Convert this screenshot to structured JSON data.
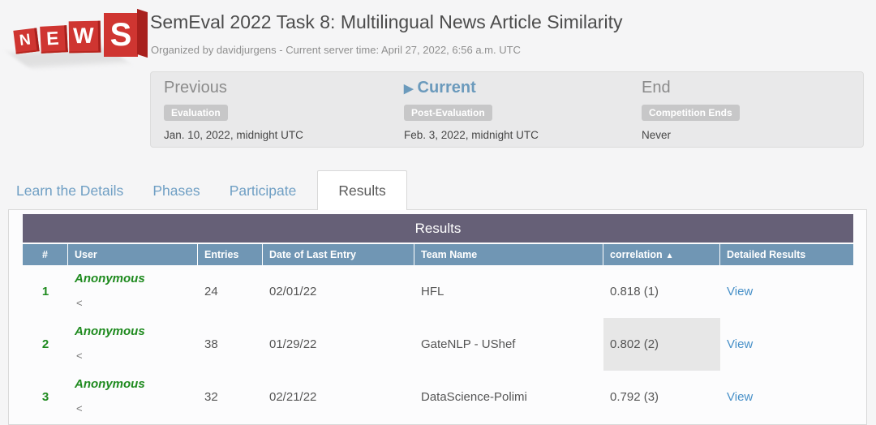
{
  "header": {
    "logo_letters": [
      "N",
      "E",
      "W",
      "S"
    ],
    "title": "SemEval 2022 Task 8: Multilingual News Article Similarity",
    "subtitle": "Organized by davidjurgens - Current server time: April 27, 2022, 6:56 a.m. UTC"
  },
  "phases": {
    "previous": {
      "label": "Previous",
      "badge": "Evaluation",
      "date": "Jan. 10, 2022, midnight UTC"
    },
    "current": {
      "label": "Current",
      "marker": "▶",
      "badge": "Post-Evaluation",
      "date": "Feb. 3, 2022, midnight UTC"
    },
    "end": {
      "label": "End",
      "badge": "Competition Ends",
      "date": "Never"
    }
  },
  "tabs": {
    "learn": "Learn the Details",
    "phases": "Phases",
    "participate": "Participate",
    "results": "Results"
  },
  "results_table": {
    "title": "Results",
    "columns": [
      "#",
      "User",
      "Entries",
      "Date of Last Entry",
      "Team Name",
      "correlation",
      "Detailed Results"
    ],
    "sort_icon": "▲",
    "rows": [
      {
        "rank": "1",
        "user": "Anonymous",
        "user_sub": "<",
        "entries": "24",
        "last_entry": "02/01/22",
        "team": "HFL",
        "correlation": "0.818 (1)",
        "detail": "View"
      },
      {
        "rank": "2",
        "user": "Anonymous",
        "user_sub": "<",
        "entries": "38",
        "last_entry": "01/29/22",
        "team": "GateNLP - UShef",
        "correlation": "0.802 (2)",
        "detail": "View"
      },
      {
        "rank": "3",
        "user": "Anonymous",
        "user_sub": "<",
        "entries": "32",
        "last_entry": "02/21/22",
        "team": "DataScience-Polimi",
        "correlation": "0.792 (3)",
        "detail": "View"
      }
    ]
  },
  "colors": {
    "accent_red": "#cf3531",
    "table_title_bg": "#666077",
    "table_header_bg": "#7096b4",
    "rank_green": "#1e8a1e",
    "link_blue": "#4790c8",
    "tab_blue": "#6f9fc4"
  }
}
